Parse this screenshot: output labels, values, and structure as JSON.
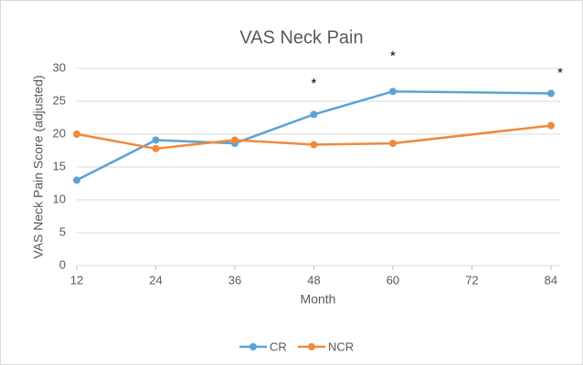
{
  "chart_data": {
    "type": "line",
    "title": "VAS Neck Pain",
    "x_label": "Month",
    "y_label": "VAS Neck Pain Score (adjusted)",
    "x": [
      12,
      24,
      36,
      48,
      60,
      84
    ],
    "series": [
      {
        "name": "CR",
        "color": "#5ba3d6",
        "values": [
          13,
          19.1,
          18.6,
          23,
          26.5,
          26.2
        ]
      },
      {
        "name": "NCR",
        "color": "#ef8a3e",
        "values": [
          20,
          17.8,
          19.1,
          18.4,
          18.6,
          21.3
        ]
      }
    ],
    "xlim": [
      12,
      85.4
    ],
    "xticks": [
      12,
      24,
      36,
      48,
      60,
      72,
      84
    ],
    "ylim": [
      0,
      30
    ],
    "yticks": [
      0,
      5,
      10,
      15,
      20,
      25,
      30
    ],
    "grid": true,
    "legend": "bottom",
    "annotations": [
      {
        "x": 48,
        "y": 27.6,
        "text": "*"
      },
      {
        "x": 60,
        "y": 31.8,
        "text": "*"
      },
      {
        "x": 85.4,
        "y": 29.2,
        "text": "*"
      }
    ]
  }
}
